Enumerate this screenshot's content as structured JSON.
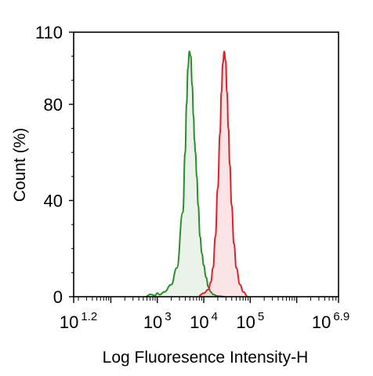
{
  "chart_data": {
    "type": "area",
    "xlabel": "Log Fluoresence Intensity-H",
    "ylabel": "Count  (%)",
    "x_scale": "log",
    "xlim_log10": [
      1.2,
      6.9
    ],
    "ylim": [
      0,
      110
    ],
    "y_ticks": [
      {
        "value": 0,
        "label": "0"
      },
      {
        "value": 40,
        "label": "40"
      },
      {
        "value": 80,
        "label": "80"
      },
      {
        "value": 110,
        "label": "110"
      }
    ],
    "x_ticks": [
      {
        "log": 1.2,
        "base": "10",
        "exp": "1.2"
      },
      {
        "log": 3,
        "base": "10",
        "exp": "3"
      },
      {
        "log": 4,
        "base": "10",
        "exp": "4"
      },
      {
        "log": 5,
        "base": "10",
        "exp": "5"
      },
      {
        "log": 6.9,
        "base": "10",
        "exp": "6.9"
      }
    ],
    "grid": false,
    "legend": "none",
    "series": [
      {
        "color": "#2e8b2e",
        "fill": "rgba(46,139,46,0.10)",
        "x_log10": [
          2.75,
          2.85,
          2.95,
          3.0,
          3.05,
          3.15,
          3.3,
          3.42,
          3.55,
          3.6,
          3.63,
          3.66,
          3.69,
          3.72,
          3.75,
          3.78,
          3.8,
          3.82,
          3.85,
          3.88,
          3.92,
          3.96,
          4.0,
          4.05,
          4.1,
          4.15,
          4.2,
          4.3,
          4.45
        ],
        "y": [
          0,
          1,
          0.5,
          1.5,
          0.8,
          2,
          5,
          12,
          35,
          60,
          80,
          95,
          102,
          100,
          88,
          75,
          65,
          60,
          50,
          38,
          25,
          18,
          13,
          8,
          4,
          2,
          1,
          0.3,
          0
        ]
      },
      {
        "color": "#e0202a",
        "fill": "rgba(224,32,42,0.12)",
        "x_log10": [
          3.9,
          4.0,
          4.1,
          4.15,
          4.2,
          4.25,
          4.3,
          4.35,
          4.38,
          4.41,
          4.44,
          4.47,
          4.5,
          4.53,
          4.56,
          4.6,
          4.65,
          4.7,
          4.78,
          4.85,
          4.95
        ],
        "y": [
          0.5,
          1.5,
          3,
          6,
          12,
          25,
          45,
          68,
          85,
          97,
          102,
          98,
          85,
          70,
          55,
          38,
          22,
          12,
          5,
          2,
          0
        ]
      }
    ]
  }
}
